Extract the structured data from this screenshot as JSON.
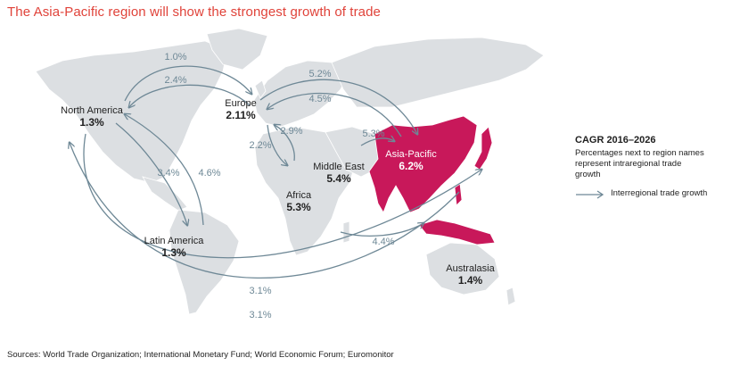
{
  "title": "The Asia-Pacific region will show the strongest growth of trade",
  "regions": {
    "north_america": {
      "name": "North America",
      "value": "1.3%"
    },
    "europe": {
      "name": "Europe",
      "value": "2.11%"
    },
    "latin_america": {
      "name": "Latin America",
      "value": "1.3%"
    },
    "africa": {
      "name": "Africa",
      "value": "5.3%"
    },
    "middle_east": {
      "name": "Middle East",
      "value": "5.4%"
    },
    "asia_pacific": {
      "name": "Asia-Pacific",
      "value": "6.2%"
    },
    "australasia": {
      "name": "Australasia",
      "value": "1.4%"
    }
  },
  "flows": {
    "na_europe_top": "1.0%",
    "na_europe_bottom": "2.4%",
    "europe_asia_top": "5.2%",
    "europe_asia_bottom": "4.5%",
    "europe_africa_left": "2.2%",
    "europe_africa_right": "2.9%",
    "middle_east_asia": "5.3%",
    "na_latam_left": "3.4%",
    "na_latam_right": "4.6%",
    "africa_asia": "4.4%",
    "na_asia_top": "3.1%",
    "na_asia_bottom": "3.1%"
  },
  "legend": {
    "heading": "CAGR 2016–2026",
    "note": "Percentages next to region names represent intraregional trade growth",
    "arrow_label": "Interregional trade growth"
  },
  "source": "Sources: World Trade Organization; International Monetary Fund; World Economic Forum; Euromonitor",
  "colors": {
    "land": "#dcdfe2",
    "highlight": "#c8185a",
    "arrow": "#6e8896",
    "title": "#e0433a"
  }
}
